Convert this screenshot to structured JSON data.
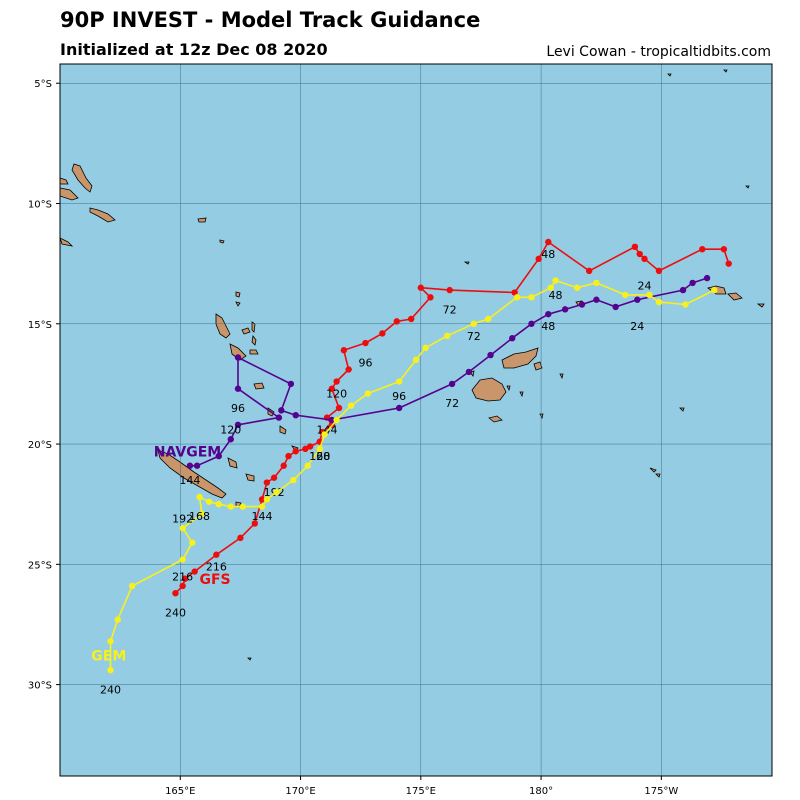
{
  "header": {
    "title": "90P INVEST - Model Track Guidance",
    "subtitle": "Initialized at 12z Dec 08 2020",
    "credit": "Levi Cowan - tropicaltidbits.com"
  },
  "colors": {
    "ocean": "#94cde3",
    "land": "#c8966a",
    "grid": "#3f6f86",
    "GFS": "#ec0e0e",
    "NAVGEM": "#55028f",
    "GEM": "#f7f01e"
  },
  "map": {
    "projection": "equirectangular",
    "lon_range": [
      160.0,
      189.6
    ],
    "lat_range": [
      -4.2,
      -33.8
    ],
    "lon_ticks": [
      {
        "lon": 165,
        "label": "165°E"
      },
      {
        "lon": 170,
        "label": "170°E"
      },
      {
        "lon": 175,
        "label": "175°E"
      },
      {
        "lon": 180,
        "label": "180°"
      },
      {
        "lon": 185,
        "label": "175°W"
      }
    ],
    "lat_ticks": [
      {
        "lat": -5,
        "label": "5°S"
      },
      {
        "lat": -10,
        "label": "10°S"
      },
      {
        "lat": -15,
        "label": "15°S"
      },
      {
        "lat": -20,
        "label": "20°S"
      },
      {
        "lat": -25,
        "label": "25°S"
      },
      {
        "lat": -30,
        "label": "30°S"
      }
    ],
    "grid": true
  },
  "tracks": [
    {
      "name": "GFS",
      "points": [
        [
          187.8,
          -12.5
        ],
        [
          187.6,
          -11.9
        ],
        [
          186.7,
          -11.9
        ],
        [
          184.9,
          -12.8
        ],
        [
          184.3,
          -12.3
        ],
        [
          184.1,
          -12.1
        ],
        [
          183.9,
          -11.8
        ],
        [
          182.0,
          -12.8
        ],
        [
          180.3,
          -11.6
        ],
        [
          179.9,
          -12.3
        ],
        [
          178.9,
          -13.7
        ],
        [
          176.2,
          -13.6
        ],
        [
          175.0,
          -13.5
        ],
        [
          175.4,
          -13.9
        ],
        [
          174.6,
          -14.8
        ],
        [
          174.0,
          -14.9
        ],
        [
          173.4,
          -15.4
        ],
        [
          172.7,
          -15.8
        ],
        [
          171.8,
          -16.1
        ],
        [
          172.0,
          -16.9
        ],
        [
          171.5,
          -17.4
        ],
        [
          171.3,
          -17.7
        ],
        [
          171.6,
          -18.5
        ],
        [
          171.1,
          -18.9
        ],
        [
          171.3,
          -19.2
        ],
        [
          170.9,
          -19.5
        ],
        [
          170.8,
          -19.9
        ],
        [
          170.4,
          -20.1
        ],
        [
          170.2,
          -20.2
        ],
        [
          169.8,
          -20.3
        ],
        [
          169.5,
          -20.5
        ],
        [
          169.3,
          -20.9
        ],
        [
          168.9,
          -21.4
        ],
        [
          168.6,
          -21.6
        ],
        [
          168.4,
          -22.3
        ],
        [
          168.1,
          -23.3
        ],
        [
          167.5,
          -23.9
        ],
        [
          166.5,
          -24.6
        ],
        [
          165.6,
          -25.3
        ],
        [
          165.2,
          -25.6
        ],
        [
          165.1,
          -25.9
        ],
        [
          164.8,
          -26.2
        ]
      ],
      "labels": [
        {
          "i": 4,
          "text": "24",
          "dy": 1.1
        },
        {
          "i": 8,
          "text": "48",
          "dy": 0.5
        },
        {
          "i": 11,
          "text": "72",
          "dy": 0.8
        },
        {
          "i": 17,
          "text": "96",
          "dy": 0.8
        },
        {
          "i": 20,
          "text": "120",
          "dy": 0.5
        },
        {
          "i": 23,
          "text": "144",
          "dy": 0.5
        },
        {
          "i": 26,
          "text": "168",
          "dy": 0.6
        },
        {
          "i": 32,
          "text": "192",
          "dy": 0.6
        },
        {
          "i": 37,
          "text": "216",
          "dy": 0.5
        },
        {
          "i": 41,
          "text": "240",
          "dy": 0.8
        }
      ],
      "model_label_at": [
        165.8,
        -25.6
      ]
    },
    {
      "name": "NAVGEM",
      "points": [
        [
          186.9,
          -13.1
        ],
        [
          186.3,
          -13.3
        ],
        [
          185.9,
          -13.6
        ],
        [
          184.0,
          -14.0
        ],
        [
          183.1,
          -14.3
        ],
        [
          182.3,
          -14.0
        ],
        [
          181.7,
          -14.2
        ],
        [
          181.0,
          -14.4
        ],
        [
          180.3,
          -14.6
        ],
        [
          179.6,
          -15.0
        ],
        [
          178.8,
          -15.6
        ],
        [
          177.9,
          -16.3
        ],
        [
          177.0,
          -17.0
        ],
        [
          176.3,
          -17.5
        ],
        [
          174.1,
          -18.5
        ],
        [
          171.3,
          -19.0
        ],
        [
          169.8,
          -18.8
        ],
        [
          169.2,
          -18.6
        ],
        [
          169.6,
          -17.5
        ],
        [
          167.4,
          -16.4
        ],
        [
          167.4,
          -17.7
        ],
        [
          169.1,
          -18.9
        ],
        [
          167.4,
          -19.2
        ],
        [
          167.1,
          -19.8
        ],
        [
          166.6,
          -20.5
        ],
        [
          165.7,
          -20.9
        ],
        [
          165.4,
          -20.9
        ]
      ],
      "labels": [
        {
          "i": 3,
          "text": "24",
          "dy": 1.1
        },
        {
          "i": 8,
          "text": "48",
          "dy": 0.5
        },
        {
          "i": 13,
          "text": "72",
          "dy": 0.8
        },
        {
          "i": 20,
          "text": "96",
          "dy": 0.8
        },
        {
          "i": 23,
          "text": "120",
          "dy": -0.4
        },
        {
          "i": 26,
          "text": "144",
          "dy": 0.6
        }
      ],
      "model_label_at": [
        163.9,
        -20.3
      ]
    },
    {
      "name": "GEM",
      "points": [
        [
          187.2,
          -13.6
        ],
        [
          186.0,
          -14.2
        ],
        [
          184.9,
          -14.1
        ],
        [
          184.5,
          -13.8
        ],
        [
          183.5,
          -13.8
        ],
        [
          182.3,
          -13.3
        ],
        [
          181.5,
          -13.5
        ],
        [
          180.6,
          -13.2
        ],
        [
          180.4,
          -13.5
        ],
        [
          179.6,
          -13.9
        ],
        [
          179.0,
          -13.9
        ],
        [
          177.8,
          -14.8
        ],
        [
          177.2,
          -15.0
        ],
        [
          176.1,
          -15.5
        ],
        [
          175.2,
          -16.0
        ],
        [
          174.8,
          -16.5
        ],
        [
          174.1,
          -17.4
        ],
        [
          172.8,
          -17.9
        ],
        [
          172.1,
          -18.4
        ],
        [
          171.5,
          -19.0
        ],
        [
          171.0,
          -19.6
        ],
        [
          170.8,
          -20.2
        ],
        [
          170.3,
          -20.9
        ],
        [
          169.7,
          -21.5
        ],
        [
          169.0,
          -22.0
        ],
        [
          168.6,
          -22.3
        ],
        [
          168.4,
          -22.6
        ],
        [
          167.6,
          -22.6
        ],
        [
          167.1,
          -22.6
        ],
        [
          166.6,
          -22.5
        ],
        [
          166.2,
          -22.4
        ],
        [
          165.8,
          -22.2
        ],
        [
          165.9,
          -22.9
        ],
        [
          165.1,
          -23.5
        ],
        [
          165.5,
          -24.1
        ],
        [
          165.1,
          -24.8
        ],
        [
          163.0,
          -25.9
        ],
        [
          162.4,
          -27.3
        ],
        [
          162.1,
          -28.2
        ],
        [
          162.1,
          -29.4
        ]
      ],
      "labels": [
        {
          "i": 7,
          "text": "48",
          "dy": 0.6
        },
        {
          "i": 12,
          "text": "72",
          "dy": 0.5
        },
        {
          "i": 16,
          "text": "96",
          "dy": 0.6
        },
        {
          "i": 21,
          "text": "120",
          "dy": 0.3
        },
        {
          "i": 26,
          "text": "144",
          "dy": 0.4
        },
        {
          "i": 31,
          "text": "168",
          "dy": 0.8
        },
        {
          "i": 33,
          "text": "192",
          "dy": -0.4
        },
        {
          "i": 35,
          "text": "216",
          "dy": 0.7
        },
        {
          "i": 39,
          "text": "240",
          "dy": 0.8
        }
      ],
      "model_label_at": [
        161.3,
        -28.8
      ]
    }
  ]
}
